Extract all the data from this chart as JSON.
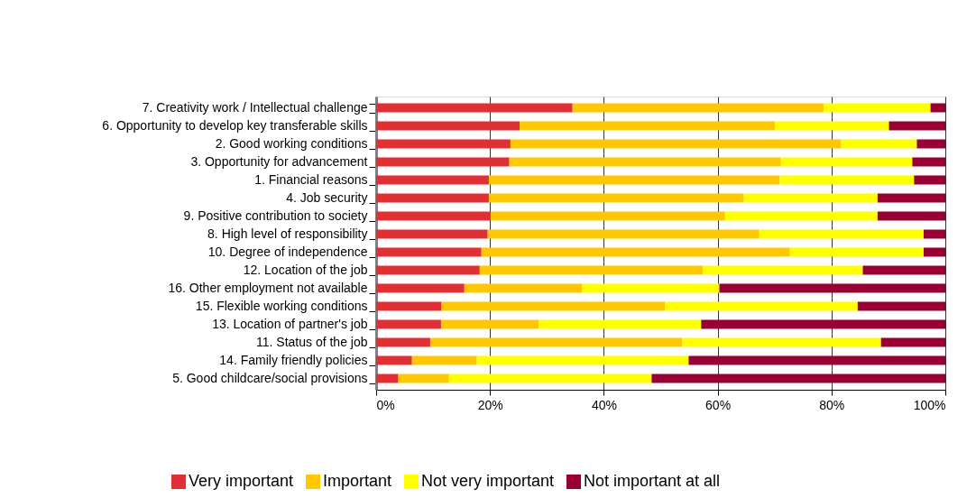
{
  "chart_data": {
    "type": "bar",
    "orientation": "horizontal",
    "stacked": true,
    "categories": [
      "7. Creativity work / Intellectual challenge",
      "6. Opportunity to develop key transferable skills",
      "2. Good working conditions",
      "3. Opportunity for advancement",
      "1. Financial reasons ",
      "4. Job security ",
      "9. Positive contribution to society",
      "8. High level of responsibility",
      "10. Degree of independence",
      "12. Location of the job",
      "16. Other employment not available",
      "15. Flexible working conditions",
      "13. Location of partner's job",
      "11. Status of the job",
      "14. Family friendly policies",
      "5. Good childcare/social provisions"
    ],
    "series": [
      {
        "name": "Very important",
        "color": "#e03036",
        "values": [
          34.5,
          25.2,
          23.6,
          23.4,
          19.8,
          19.8,
          20.1,
          19.6,
          18.5,
          18.2,
          15.5,
          11.5,
          11.4,
          9.5,
          6.3,
          3.9
        ]
      },
      {
        "name": "Important",
        "color": "#ffc800",
        "values": [
          44.1,
          44.9,
          58.1,
          47.7,
          51.1,
          44.8,
          41.2,
          47.7,
          54.2,
          39.2,
          20.7,
          39.3,
          17.2,
          44.3,
          11.4,
          8.9
        ]
      },
      {
        "name": "Not very important",
        "color": "#ffff00",
        "values": [
          18.8,
          20.0,
          13.3,
          23.1,
          23.6,
          23.5,
          26.8,
          28.9,
          23.5,
          28.1,
          24.1,
          33.8,
          28.5,
          34.9,
          37.2,
          35.6
        ]
      },
      {
        "name": "Not important at all",
        "color": "#990033",
        "values": [
          2.6,
          9.9,
          5.0,
          5.8,
          5.5,
          11.9,
          11.9,
          3.8,
          3.8,
          14.5,
          39.7,
          15.4,
          42.9,
          11.3,
          45.1,
          51.6
        ]
      }
    ],
    "xlim": [
      0,
      100
    ],
    "xticks": [
      {
        "value": 0,
        "label": "0%"
      },
      {
        "value": 20,
        "label": "20%"
      },
      {
        "value": 40,
        "label": "40%"
      },
      {
        "value": 60,
        "label": "60%"
      },
      {
        "value": 80,
        "label": "80%"
      },
      {
        "value": 100,
        "label": "100%"
      }
    ],
    "grid": "x",
    "legend": "bottom"
  }
}
